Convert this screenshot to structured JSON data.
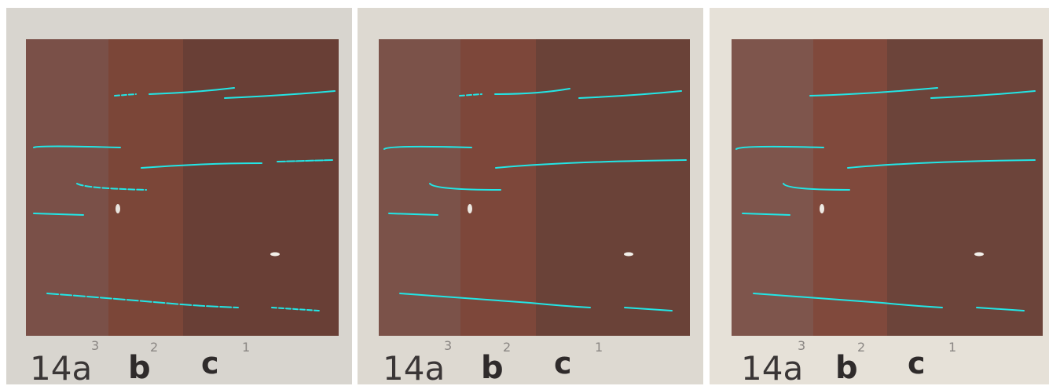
{
  "figure": {
    "panels": [
      {
        "id": "panel-1",
        "board_color": "#d9d6d0",
        "strip_colors": [
          "#7a4e46",
          "#7b4638",
          "#6a4238"
        ],
        "labels": {
          "sample": "14a",
          "mid": "b",
          "right": "c",
          "num_left": "3",
          "num_mid": "2",
          "num_right": "1"
        }
      },
      {
        "id": "panel-2",
        "board_color": "#dedad2",
        "strip_colors": [
          "#7b5149",
          "#7d473a",
          "#6b443b"
        ],
        "labels": {
          "sample": "14a",
          "mid": "b",
          "right": "c",
          "num_left": "3",
          "num_mid": "2",
          "num_right": "1"
        }
      },
      {
        "id": "panel-3",
        "board_color": "#e7e2d9",
        "strip_colors": [
          "#7e544b",
          "#80493c",
          "#6e463c"
        ],
        "labels": {
          "sample": "14a",
          "mid": "b",
          "right": "c",
          "num_left": "3",
          "num_mid": "2",
          "num_right": "1"
        }
      }
    ],
    "crack_color": "#22e6e6"
  }
}
